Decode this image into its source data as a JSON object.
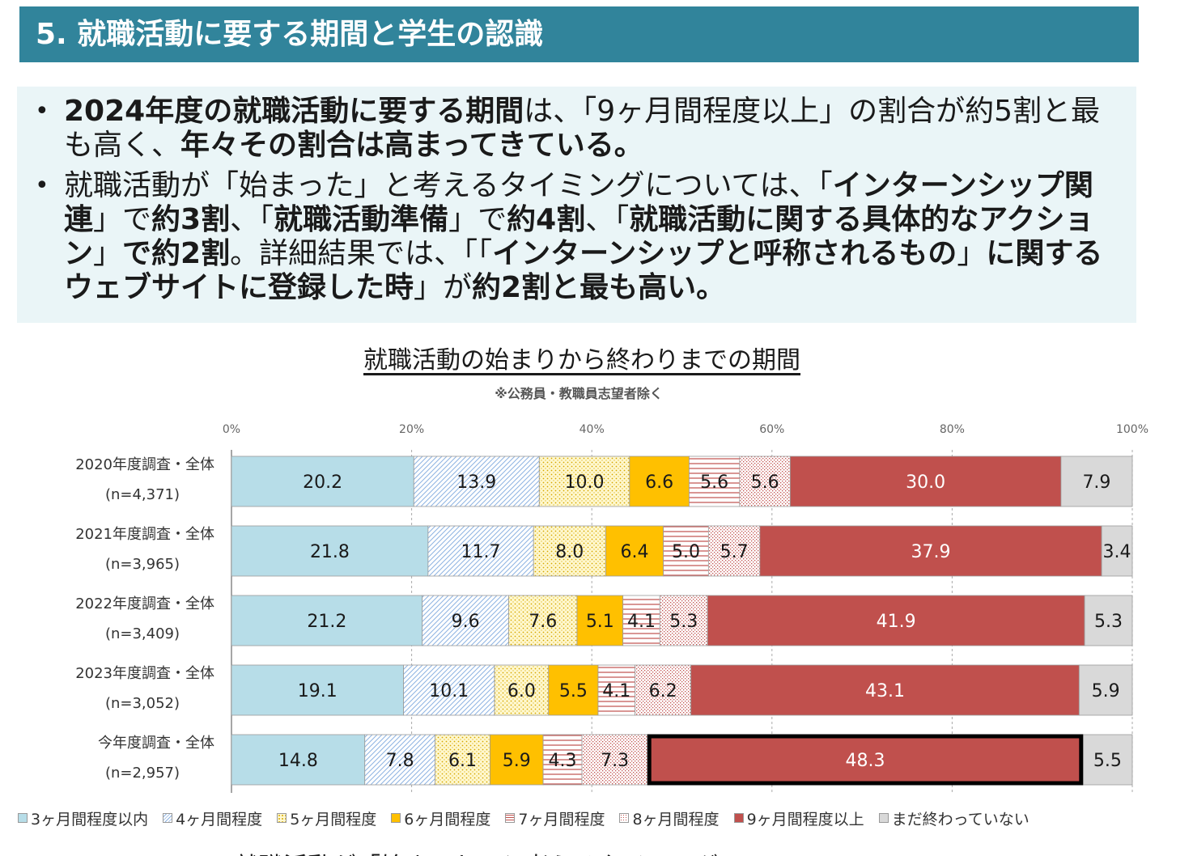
{
  "header": {
    "title": "5. 就職活動に要する期間と学生の認識"
  },
  "summary": {
    "bullet1": {
      "p1": "2024年度の就職活動に要する期間",
      "p2": "は、「9ヶ月間程度以上」の割合が約5割と最も高く、",
      "p3": "年々その割合は高まってきている。"
    },
    "bullet2": {
      "p1": "就職活動が「始まった」と考えるタイミングについては、「",
      "p2": "インターンシップ関連",
      "p3": "」で",
      "p4": "約3割",
      "p5": "、「",
      "p6": "就職活動準備",
      "p7": "」で",
      "p8": "約4割",
      "p9": "、「",
      "p10": "就職活動に関する具体的なアクション",
      "p11": "」",
      "p12": "で約2割",
      "p13": "。詳細結果では、「「",
      "p14": "インターンシップと呼称されるもの",
      "p15": "」",
      "p16": "に関するウェブサイトに登録した時",
      "p17": "」が",
      "p18": "約2割と最も高い。"
    }
  },
  "chart_data": {
    "type": "bar",
    "orientation": "horizontal",
    "stacked": "100%",
    "title": "就職活動の始まりから終わりまでの期間",
    "subtitle": "※公務員・教職員志望者除く",
    "xticks": [
      "0%",
      "20%",
      "40%",
      "60%",
      "80%",
      "100%"
    ],
    "xlim": [
      0,
      100
    ],
    "categories": [
      {
        "label": "2020年度調査・全体",
        "n": "(n=4,371)"
      },
      {
        "label": "2021年度調査・全体",
        "n": "(n=3,965)"
      },
      {
        "label": "2022年度調査・全体",
        "n": "(n=3,409)"
      },
      {
        "label": "2023年度調査・全体",
        "n": "(n=3,052)"
      },
      {
        "label": "今年度調査・全体",
        "n": "(n=2,957)"
      }
    ],
    "series": [
      {
        "name": "3ヶ月間程度以内",
        "color": "#b7dde8",
        "pattern": "solid",
        "values": [
          20.2,
          21.8,
          21.2,
          19.1,
          14.8
        ]
      },
      {
        "name": "4ヶ月間程度",
        "color": "#8db3e2",
        "pattern": "diagonal",
        "values": [
          13.9,
          11.7,
          9.6,
          10.1,
          7.8
        ]
      },
      {
        "name": "5ヶ月間程度",
        "color": "#e6c84a",
        "pattern": "dots",
        "values": [
          10.0,
          8.0,
          7.6,
          6.0,
          6.1
        ]
      },
      {
        "name": "6ヶ月間程度",
        "color": "#ffc000",
        "pattern": "solid",
        "values": [
          6.6,
          6.4,
          5.1,
          5.5,
          5.9
        ]
      },
      {
        "name": "7ヶ月間程度",
        "color": "#c0504d",
        "pattern": "horizontal",
        "values": [
          5.6,
          5.0,
          4.1,
          4.1,
          4.3
        ]
      },
      {
        "name": "8ヶ月間程度",
        "color": "#c0504d",
        "pattern": "checker",
        "values": [
          5.6,
          5.7,
          5.3,
          6.2,
          7.3
        ]
      },
      {
        "name": "9ヶ月間程度以上",
        "color": "#c0504d",
        "pattern": "solid",
        "values": [
          30.0,
          37.9,
          41.9,
          43.1,
          48.3
        ]
      },
      {
        "name": "まだ終わっていない",
        "color": "#d9d9d9",
        "pattern": "solid",
        "values": [
          7.9,
          3.4,
          5.3,
          5.9,
          5.5
        ]
      }
    ],
    "labels": [
      [
        "20.2",
        "13.9",
        "10.0",
        "6.6",
        "5.6",
        "5.6",
        "30.0",
        "7.9"
      ],
      [
        "21.8",
        "11.7",
        "8.0",
        "6.4",
        "5.0",
        "5.7",
        "37.9",
        "3.4"
      ],
      [
        "21.2",
        "9.6",
        "7.6",
        "5.1",
        "4.1",
        "5.3",
        "41.9",
        "5.3"
      ],
      [
        "19.1",
        "10.1",
        "6.0",
        "5.5",
        "4.1",
        "6.2",
        "43.1",
        "5.9"
      ],
      [
        "14.8",
        "7.8",
        "6.1",
        "5.9",
        "4.3",
        "7.3",
        "48.3",
        "5.5"
      ]
    ],
    "highlight": {
      "category_index": 4,
      "series_index": 6
    },
    "grid": true,
    "legend_position": "bottom"
  },
  "next_section": {
    "title": "就職活動が「始まった」と考えるタイミング"
  }
}
